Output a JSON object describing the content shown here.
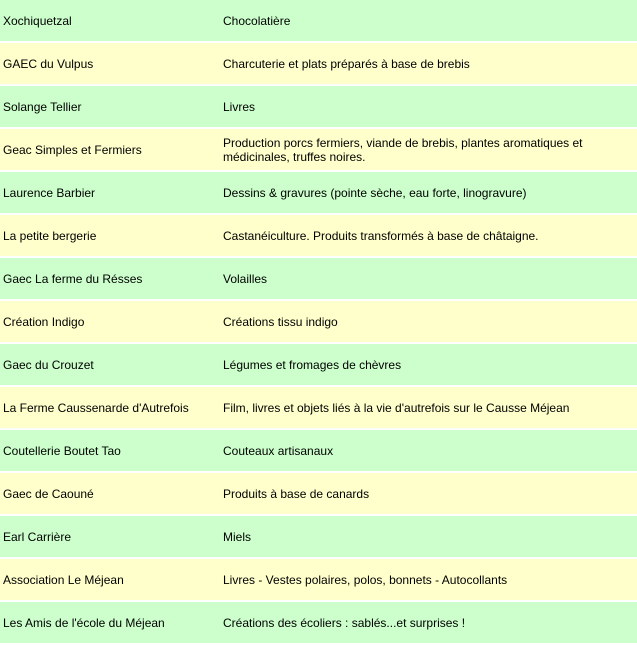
{
  "table": {
    "rows": [
      [
        "Xochiquetzal",
        "Chocolatière"
      ],
      [
        "GAEC du Vulpus",
        "Charcuterie et plats préparés à base de brebis"
      ],
      [
        "Solange Tellier",
        "Livres"
      ],
      [
        "Geac Simples et Fermiers",
        "Production porcs fermiers, viande de brebis, plantes aromatiques et médicinales, truffes noires."
      ],
      [
        "Laurence Barbier",
        "Dessins & gravures (pointe sèche, eau forte, linogravure)"
      ],
      [
        "La petite bergerie",
        "Castanéiculture. Produits transformés à base de châtaigne."
      ],
      [
        "Gaec La ferme du Résses",
        "Volailles"
      ],
      [
        "Création Indigo",
        "Créations tissu indigo"
      ],
      [
        "Gaec du Crouzet",
        "Légumes et fromages de chèvres"
      ],
      [
        "La Ferme Caussenarde d'Autrefois",
        "Film, livres et objets liés à la vie d'autrefois sur le Causse Méjean"
      ],
      [
        "Coutellerie Boutet Tao",
        "Couteaux artisanaux"
      ],
      [
        "Gaec de Caouné",
        "Produits à base de canards"
      ],
      [
        "Earl Carrière",
        "Miels"
      ],
      [
        "Association Le Méjean",
        "Livres - Vestes polaires, polos, bonnets - Autocollants"
      ],
      [
        "Les Amis de l'école du Méjean",
        "Créations des écoliers : sablés...et surprises !"
      ]
    ]
  }
}
